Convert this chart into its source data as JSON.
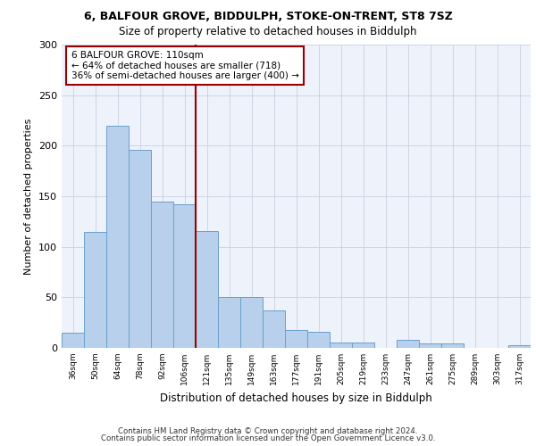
{
  "title_line1": "6, BALFOUR GROVE, BIDDULPH, STOKE-ON-TRENT, ST8 7SZ",
  "title_line2": "Size of property relative to detached houses in Biddulph",
  "xlabel": "Distribution of detached houses by size in Biddulph",
  "ylabel": "Number of detached properties",
  "categories": [
    "36sqm",
    "50sqm",
    "64sqm",
    "78sqm",
    "92sqm",
    "106sqm",
    "121sqm",
    "135sqm",
    "149sqm",
    "163sqm",
    "177sqm",
    "191sqm",
    "205sqm",
    "219sqm",
    "233sqm",
    "247sqm",
    "261sqm",
    "275sqm",
    "289sqm",
    "303sqm",
    "317sqm"
  ],
  "values": [
    15,
    115,
    220,
    196,
    145,
    142,
    116,
    50,
    50,
    37,
    18,
    16,
    5,
    5,
    0,
    8,
    4,
    4,
    0,
    0,
    3
  ],
  "bar_color": "#b8d0eb",
  "bar_edge_color": "#6aa0cc",
  "vline_x": 6.0,
  "vline_color": "#990000",
  "annotation_text": "6 BALFOUR GROVE: 110sqm\n← 64% of detached houses are smaller (718)\n36% of semi-detached houses are larger (400) →",
  "annotation_box_color": "white",
  "annotation_box_edge": "#990000",
  "ylim": [
    0,
    300
  ],
  "yticks": [
    0,
    50,
    100,
    150,
    200,
    250,
    300
  ],
  "footer_line1": "Contains HM Land Registry data © Crown copyright and database right 2024.",
  "footer_line2": "Contains public sector information licensed under the Open Government Licence v3.0.",
  "bg_color": "#edf2fb",
  "grid_color": "#c8d0e0"
}
